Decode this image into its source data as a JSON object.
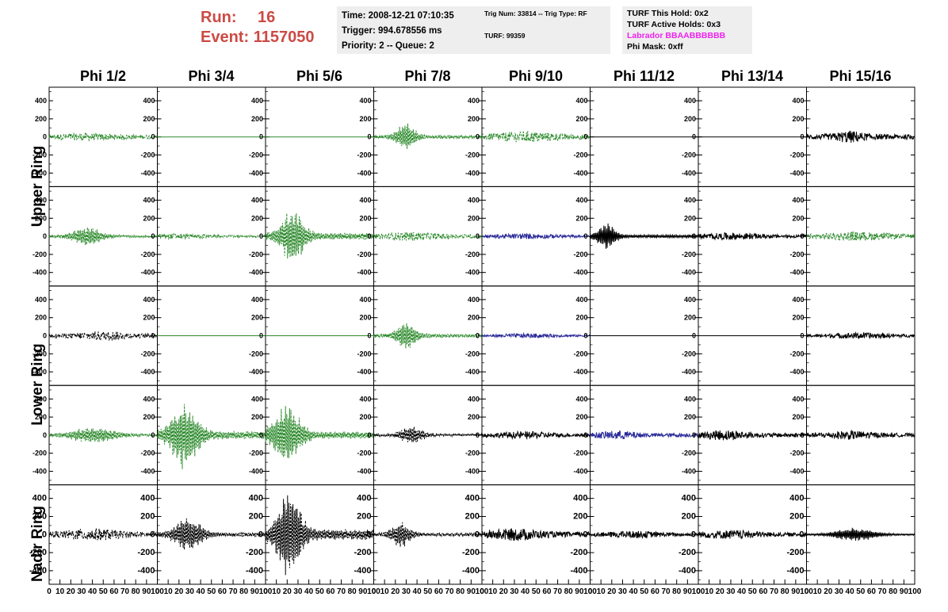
{
  "header": {
    "run_label": "Run:",
    "run_value": "16",
    "event_label": "Event:",
    "event_value": "1157050",
    "time": "Time: 2008-12-21 07:10:35",
    "trigger": "Trigger: 994.678556 ms",
    "priority": "Priority: 2 -- Queue: 2",
    "trig_num": "Trig Num: 33814 -- Trig Type: RF",
    "turf": "TURF: 99359",
    "turf_this_hold": "TURF This Hold: 0x2",
    "turf_active_holds": "TURF Active Holds: 0x3",
    "labrador": "Labrador BBAABBBBBB",
    "phi_mask": "Phi Mask: 0xff"
  },
  "colors": {
    "run_text": "#cc4a44",
    "labrador_text": "#ee22ee",
    "green_trace": "#2e8b2e",
    "blue_trace": "#2a2a99",
    "black_trace": "#000000"
  },
  "chart_data": {
    "type": "line",
    "columns": [
      "Phi 1/2",
      "Phi 3/4",
      "Phi 5/6",
      "Phi 7/8",
      "Phi 9/10",
      "Phi 11/12",
      "Phi 13/14",
      "Phi 15/16"
    ],
    "row_labels": [
      "Upper Ring",
      "Lower Ring",
      "Nadir Ring"
    ],
    "xlim": [
      0,
      100
    ],
    "ylim": [
      -550,
      550
    ],
    "x_ticks": [
      0,
      10,
      20,
      30,
      40,
      50,
      60,
      70,
      80,
      90,
      100
    ],
    "y_ticks": [
      400,
      200,
      0,
      -200,
      -400
    ],
    "grid": false,
    "panels": [
      [
        {
          "color": "green",
          "amp": 40,
          "center": 35,
          "width": 40,
          "dash": true
        },
        {
          "color": "green",
          "amp": 0,
          "center": 50,
          "width": 30,
          "dash": false
        },
        {
          "color": "green",
          "amp": 0,
          "center": 50,
          "width": 30,
          "dash": false
        },
        {
          "color": "green",
          "amp": 160,
          "center": 30,
          "width": 10,
          "dash": true
        },
        {
          "color": "green",
          "amp": 60,
          "center": 40,
          "width": 35,
          "dash": true
        },
        {
          "color": "black",
          "amp": 0,
          "center": 50,
          "width": 30,
          "dash": false
        },
        {
          "color": "black",
          "amp": 0,
          "center": 50,
          "width": 30,
          "dash": false
        },
        {
          "color": "black",
          "amp": 70,
          "center": 40,
          "width": 14,
          "dash": false
        }
      ],
      [
        {
          "color": "green",
          "amp": 110,
          "center": 35,
          "width": 15,
          "dash": true
        },
        {
          "color": "green",
          "amp": 30,
          "center": 20,
          "width": 25,
          "dash": true
        },
        {
          "color": "green",
          "amp": 320,
          "center": 25,
          "width": 12,
          "dash": true
        },
        {
          "color": "green",
          "amp": 50,
          "center": 35,
          "width": 25,
          "dash": true
        },
        {
          "color": "blue",
          "amp": 30,
          "center": 40,
          "width": 30,
          "dash": false
        },
        {
          "color": "black",
          "amp": 150,
          "center": 15,
          "width": 10,
          "dash": false
        },
        {
          "color": "black",
          "amp": 40,
          "center": 30,
          "width": 30,
          "dash": false
        },
        {
          "color": "green",
          "amp": 50,
          "center": 45,
          "width": 35,
          "dash": true
        }
      ],
      [
        {
          "color": "black",
          "amp": 50,
          "center": 50,
          "width": 25,
          "dash": true
        },
        {
          "color": "green",
          "amp": 0,
          "center": 50,
          "width": 30,
          "dash": false
        },
        {
          "color": "green",
          "amp": 0,
          "center": 50,
          "width": 30,
          "dash": false
        },
        {
          "color": "green",
          "amp": 170,
          "center": 30,
          "width": 10,
          "dash": true
        },
        {
          "color": "blue",
          "amp": 25,
          "center": 40,
          "width": 30,
          "dash": false
        },
        {
          "color": "black",
          "amp": 0,
          "center": 50,
          "width": 30,
          "dash": false
        },
        {
          "color": "black",
          "amp": 0,
          "center": 50,
          "width": 30,
          "dash": false
        },
        {
          "color": "black",
          "amp": 35,
          "center": 50,
          "width": 30,
          "dash": false
        }
      ],
      [
        {
          "color": "green",
          "amp": 90,
          "center": 40,
          "width": 25,
          "dash": true
        },
        {
          "color": "green",
          "amp": 390,
          "center": 25,
          "width": 14,
          "dash": true
        },
        {
          "color": "green",
          "amp": 340,
          "center": 20,
          "width": 14,
          "dash": true
        },
        {
          "color": "black",
          "amp": 110,
          "center": 35,
          "width": 12,
          "dash": true
        },
        {
          "color": "black",
          "amp": 40,
          "center": 40,
          "width": 30,
          "dash": false
        },
        {
          "color": "blue",
          "amp": 50,
          "center": 25,
          "width": 20,
          "dash": false
        },
        {
          "color": "black",
          "amp": 60,
          "center": 25,
          "width": 20,
          "dash": false
        },
        {
          "color": "black",
          "amp": 50,
          "center": 40,
          "width": 25,
          "dash": false
        }
      ],
      [
        {
          "color": "black",
          "amp": 70,
          "center": 40,
          "width": 25,
          "dash": true
        },
        {
          "color": "black",
          "amp": 200,
          "center": 28,
          "width": 14,
          "dash": true
        },
        {
          "color": "black",
          "amp": 520,
          "center": 22,
          "width": 12,
          "dash": true
        },
        {
          "color": "black",
          "amp": 150,
          "center": 25,
          "width": 10,
          "dash": true
        },
        {
          "color": "black",
          "amp": 70,
          "center": 30,
          "width": 25,
          "dash": false
        },
        {
          "color": "black",
          "amp": 40,
          "center": 40,
          "width": 30,
          "dash": false
        },
        {
          "color": "black",
          "amp": 50,
          "center": 30,
          "width": 30,
          "dash": false
        },
        {
          "color": "black",
          "amp": 80,
          "center": 45,
          "width": 20,
          "dash": false
        }
      ]
    ]
  }
}
